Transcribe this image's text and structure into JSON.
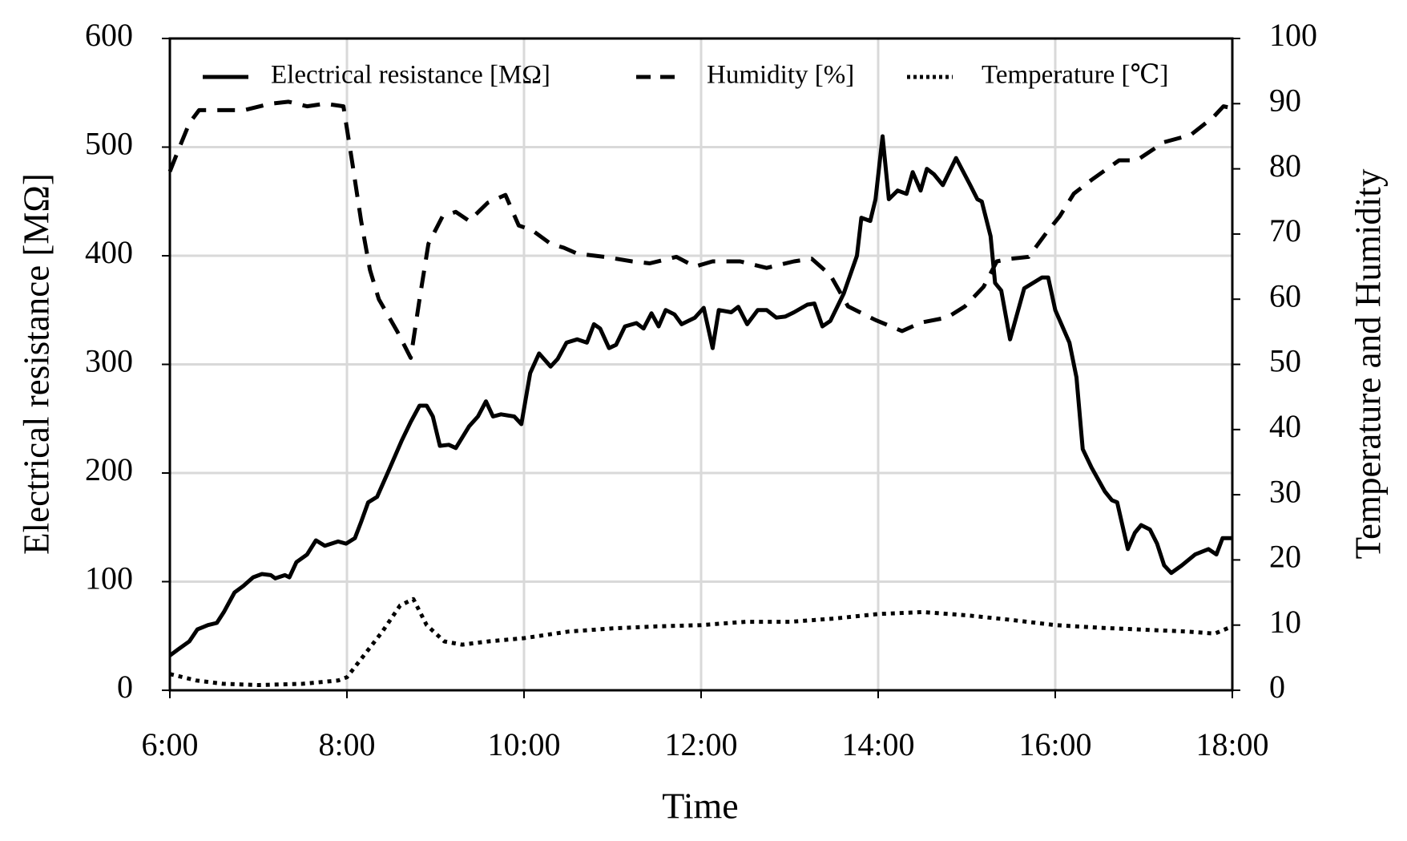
{
  "chart_data": {
    "type": "line",
    "xlabel": "Time",
    "ylabel": "Electrical resistance [MΩ]",
    "y2label": "Temperature and Humidity",
    "xlim": [
      6,
      18
    ],
    "xticks": [
      {
        "value": 6,
        "label": "6:00"
      },
      {
        "value": 8,
        "label": "8:00"
      },
      {
        "value": 10,
        "label": "10:00"
      },
      {
        "value": 12,
        "label": "12:00"
      },
      {
        "value": 14,
        "label": "14:00"
      },
      {
        "value": 16,
        "label": "16:00"
      },
      {
        "value": 18,
        "label": "18:00"
      }
    ],
    "ylim": [
      0,
      600
    ],
    "yticks": [
      0,
      100,
      200,
      300,
      400,
      500,
      600
    ],
    "y2lim": [
      0,
      100
    ],
    "y2ticks": [
      0,
      10,
      20,
      30,
      40,
      50,
      60,
      70,
      80,
      90,
      100
    ],
    "grid": true,
    "legend": "top",
    "series": [
      {
        "name": "Electrical resistance [MΩ]",
        "color": "#000000",
        "dash": "solid",
        "x": [
          6.0,
          6.1,
          6.22,
          6.31,
          6.43,
          6.53,
          6.61,
          6.73,
          6.83,
          6.94,
          7.04,
          7.14,
          7.19,
          7.3,
          7.35,
          7.43,
          7.55,
          7.65,
          7.75,
          7.9,
          7.99,
          8.09,
          8.16,
          8.24,
          8.34,
          8.46,
          8.62,
          8.72,
          8.82,
          8.9,
          8.97,
          9.05,
          9.15,
          9.23,
          9.38,
          9.48,
          9.57,
          9.65,
          9.74,
          9.89,
          9.97,
          10.07,
          10.17,
          10.3,
          10.38,
          10.48,
          10.6,
          10.71,
          10.79,
          10.86,
          10.96,
          11.04,
          11.14,
          11.27,
          11.35,
          11.44,
          11.52,
          11.6,
          11.7,
          11.78,
          11.93,
          12.03,
          12.13,
          12.2,
          12.34,
          12.42,
          12.52,
          12.64,
          12.74,
          12.85,
          12.95,
          13.05,
          13.2,
          13.28,
          13.37,
          13.46,
          13.61,
          13.76,
          13.81,
          13.91,
          13.97,
          14.05,
          14.12,
          14.22,
          14.32,
          14.39,
          14.48,
          14.55,
          14.63,
          14.73,
          14.88,
          15.04,
          15.12,
          15.17,
          15.27,
          15.32,
          15.39,
          15.49,
          15.65,
          15.85,
          15.92,
          16.0,
          16.16,
          16.24,
          16.31,
          16.41,
          16.56,
          16.64,
          16.7,
          16.82,
          16.9,
          16.97,
          17.07,
          17.15,
          17.23,
          17.31,
          17.43,
          17.58,
          17.73,
          17.82,
          17.89,
          18.0
        ],
        "values": [
          32,
          38,
          45,
          56,
          60,
          62,
          72,
          90,
          96,
          104,
          107,
          106,
          103,
          106,
          104,
          118,
          125,
          138,
          133,
          137,
          135,
          140,
          155,
          173,
          178,
          200,
          230,
          247,
          262,
          262,
          252,
          225,
          226,
          223,
          243,
          252,
          266,
          252,
          254,
          252,
          245,
          292,
          310,
          298,
          305,
          320,
          323,
          320,
          337,
          333,
          315,
          318,
          335,
          338,
          333,
          347,
          335,
          350,
          346,
          337,
          343,
          352,
          315,
          350,
          348,
          353,
          337,
          350,
          350,
          343,
          344,
          348,
          355,
          356,
          335,
          340,
          365,
          400,
          435,
          432,
          452,
          510,
          452,
          460,
          457,
          477,
          460,
          480,
          475,
          465,
          490,
          465,
          452,
          450,
          418,
          375,
          368,
          323,
          370,
          380,
          380,
          350,
          320,
          288,
          222,
          205,
          183,
          175,
          173,
          130,
          145,
          152,
          148,
          135,
          115,
          108,
          115,
          125,
          130,
          125,
          140,
          140
        ]
      },
      {
        "name": "Humidity [%]",
        "color": "#000000",
        "dash": "dashed",
        "axis": "y2",
        "x": [
          6.0,
          6.1,
          6.22,
          6.33,
          6.53,
          6.84,
          7.14,
          7.34,
          7.55,
          7.75,
          7.96,
          8.06,
          8.16,
          8.26,
          8.36,
          8.57,
          8.72,
          8.82,
          8.92,
          9.08,
          9.23,
          9.38,
          9.59,
          9.79,
          9.94,
          10.09,
          10.3,
          10.45,
          10.6,
          10.91,
          11.22,
          11.42,
          11.72,
          11.93,
          12.13,
          12.44,
          12.74,
          13.05,
          13.25,
          13.46,
          13.66,
          13.97,
          14.27,
          14.48,
          14.78,
          14.98,
          15.19,
          15.34,
          15.49,
          15.7,
          15.9,
          16.05,
          16.21,
          16.41,
          16.72,
          16.92,
          17.23,
          17.53,
          17.79,
          17.9,
          18.0
        ],
        "values": [
          79.6,
          83,
          87,
          89,
          89,
          89,
          90,
          90.3,
          89.6,
          90,
          89.6,
          81,
          72,
          64.5,
          60,
          55,
          51,
          60,
          68.5,
          72.7,
          73.4,
          72,
          74.8,
          76,
          71.3,
          70.6,
          68.5,
          67.9,
          67,
          66.5,
          65.8,
          65.5,
          66.5,
          65,
          65.8,
          65.8,
          64.8,
          65.8,
          66.2,
          63.7,
          58.9,
          56.8,
          55.1,
          56.4,
          57.2,
          58.9,
          61.9,
          65.8,
          66.2,
          66.5,
          70.2,
          72.7,
          76.2,
          78.3,
          81.3,
          81.3,
          84.1,
          85.2,
          88,
          89.6,
          89.3
        ]
      },
      {
        "name": "Temperature [℃]",
        "color": "#000000",
        "dash": "dotted",
        "axis": "y2",
        "x": [
          6.0,
          6.3,
          6.6,
          7.0,
          7.5,
          7.9,
          8.0,
          8.2,
          8.4,
          8.6,
          8.75,
          8.9,
          9.1,
          9.3,
          9.6,
          10.0,
          10.5,
          11.0,
          11.5,
          12.0,
          12.5,
          13.0,
          13.5,
          14.0,
          14.5,
          15.0,
          15.5,
          16.0,
          16.5,
          17.0,
          17.5,
          17.8,
          18.0
        ],
        "values": [
          2.5,
          1.5,
          1,
          0.8,
          1,
          1.5,
          2,
          5.5,
          9,
          13,
          14,
          10,
          7.5,
          7,
          7.5,
          8,
          9,
          9.5,
          9.8,
          10,
          10.5,
          10.5,
          11,
          11.7,
          12,
          11.5,
          10.8,
          10,
          9.6,
          9.3,
          9,
          8.7,
          9.8
        ]
      }
    ]
  }
}
